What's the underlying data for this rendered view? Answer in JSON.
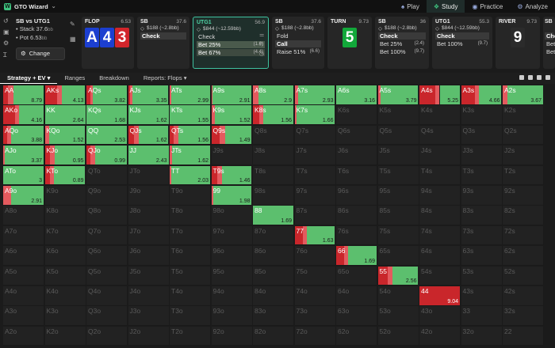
{
  "app": {
    "logo": "GTO Wizard"
  },
  "nav": [
    {
      "label": "Play",
      "icon": "spade-icon",
      "glyph": "♠"
    },
    {
      "label": "Study",
      "icon": "book-icon",
      "glyph": "❖"
    },
    {
      "label": "Practice",
      "icon": "controller-icon",
      "glyph": "◉"
    },
    {
      "label": "Analyze",
      "icon": "analyze-icon",
      "glyph": "⚙"
    }
  ],
  "spot": {
    "title": "SB vs UTG1",
    "stack_label": "Stack 37.6",
    "stack_unit": "bb",
    "pot_label": "Pot 6.53",
    "pot_unit": "bb",
    "change_label": "Change"
  },
  "flop": {
    "label": "FLOP",
    "pot": "6.53",
    "cards": [
      "A",
      "4",
      "3"
    ]
  },
  "sb1": {
    "label": "SB",
    "num": "37.6",
    "sub": "$188 (~2.8bb)",
    "actions": [
      {
        "label": "Check",
        "val": ""
      }
    ]
  },
  "utg1": {
    "label": "UTG1",
    "num": "56.9",
    "sub": "$844 (~12.59bb)",
    "actions": [
      {
        "label": "Check",
        "val": ""
      },
      {
        "label": "Bet 25%",
        "val": "(1.6)"
      },
      {
        "label": "Bet 67%",
        "val": "(4.4)"
      }
    ]
  },
  "sb2": {
    "label": "SB",
    "num": "37.6",
    "sub": "$188 (~2.8bb)",
    "actions": [
      {
        "label": "Fold",
        "val": ""
      },
      {
        "label": "Call",
        "val": ""
      },
      {
        "label": "Raise 51%",
        "val": "(6.6)"
      }
    ]
  },
  "turn": {
    "label": "TURN",
    "pot": "9.73",
    "card": "5"
  },
  "sb3": {
    "label": "SB",
    "num": "36",
    "sub": "$188 (~2.8bb)",
    "actions": [
      {
        "label": "Check",
        "val": ""
      },
      {
        "label": "Bet 25%",
        "val": "(2.4)"
      },
      {
        "label": "Bet 100%",
        "val": "(9.7)"
      }
    ]
  },
  "utg1b": {
    "label": "UTG1",
    "num": "55.3",
    "sub": "$844 (~12.59bb)",
    "actions": [
      {
        "label": "Check",
        "val": ""
      },
      {
        "label": "Bet 100%",
        "val": "(9.7)"
      }
    ]
  },
  "river": {
    "label": "RIVER",
    "pot": "9.73",
    "card": "9"
  },
  "last": {
    "label": "SB",
    "actions": [
      {
        "label": "Che"
      },
      {
        "label": "Bet"
      },
      {
        "label": "Bet"
      }
    ]
  },
  "tabs": [
    "Strategy + EV",
    "Ranges",
    "Breakdown",
    "Reports: Flops"
  ],
  "colors": {
    "green": "#5cbf6e",
    "dark_red": "#c9262b",
    "light_red": "#e35a5e",
    "accent": "#3ec2a0"
  },
  "matrix": [
    [
      [
        "AA",
        "8.79",
        [
          0.12,
          0.14,
          0.74
        ]
      ],
      [
        "AKs",
        "4.13",
        [
          0.3,
          0.12,
          0.58
        ]
      ],
      [
        "AQs",
        "3.82",
        [
          0.1,
          0.05,
          0.85
        ]
      ],
      [
        "AJs",
        "3.35",
        [
          0.05,
          0.05,
          0.9
        ]
      ],
      [
        "ATs",
        "2.99",
        [
          0.0,
          0.04,
          0.96
        ]
      ],
      [
        "A9s",
        "2.91",
        [
          0.0,
          0.02,
          0.98
        ]
      ],
      [
        "A8s",
        "2.9",
        [
          0.0,
          0.14,
          0.86
        ]
      ],
      [
        "A7s",
        "2.93",
        [
          0.0,
          0.08,
          0.92
        ]
      ],
      [
        "A6s",
        "3.16",
        [
          0,
          0,
          1
        ]
      ],
      [
        "A5s",
        "3.79",
        [
          0.0,
          0.06,
          0.94
        ]
      ],
      [
        "A4s",
        "5.25",
        [
          0.4,
          0.1,
          0.5
        ]
      ],
      [
        "A3s",
        "4.66",
        [
          0.35,
          0.1,
          0.55
        ]
      ],
      [
        "A2s",
        "3.67",
        [
          0.0,
          0.12,
          0.88
        ]
      ]
    ],
    [
      [
        "AKo",
        "4.16",
        [
          0.3,
          0.1,
          0.6
        ]
      ],
      [
        "KK",
        "2.64",
        [
          0,
          0,
          1
        ]
      ],
      [
        "KQs",
        "1.68",
        [
          0,
          0,
          1
        ]
      ],
      [
        "KJs",
        "1.62",
        [
          0,
          0,
          1
        ]
      ],
      [
        "KTs",
        "1.55",
        [
          0,
          0,
          1
        ]
      ],
      [
        "K9s",
        "1.52",
        [
          0,
          0.08,
          0.92
        ]
      ],
      [
        "K8s",
        "1.56",
        [
          0.15,
          0.1,
          0.75
        ]
      ],
      [
        "K7s",
        "1.66",
        [
          0,
          0.04,
          0.96
        ]
      ],
      [
        "K6s",
        ""
      ],
      [
        "K5s",
        ""
      ],
      [
        "K4s",
        ""
      ],
      [
        "K3s",
        ""
      ],
      [
        "K2s",
        ""
      ]
    ],
    [
      [
        "AQo",
        "3.88",
        [
          0.1,
          0.1,
          0.8
        ]
      ],
      [
        "KQo",
        "1.52",
        [
          0,
          0.1,
          0.9
        ]
      ],
      [
        "QQ",
        "2.53",
        [
          0,
          0,
          1
        ]
      ],
      [
        "QJs",
        "1.62",
        [
          0.15,
          0.12,
          0.73
        ]
      ],
      [
        "QTs",
        "1.56",
        [
          0.1,
          0.12,
          0.78
        ]
      ],
      [
        "Q9s",
        "1.49",
        [
          0.2,
          0.15,
          0.65
        ]
      ],
      [
        "Q8s",
        ""
      ],
      [
        "Q7s",
        ""
      ],
      [
        "Q6s",
        ""
      ],
      [
        "Q5s",
        ""
      ],
      [
        "Q4s",
        ""
      ],
      [
        "Q3s",
        ""
      ],
      [
        "Q2s",
        ""
      ]
    ],
    [
      [
        "AJo",
        "3.37",
        [
          0,
          0.04,
          0.96
        ]
      ],
      [
        "KJo",
        "0.95",
        [
          0.12,
          0.12,
          0.76
        ]
      ],
      [
        "QJo",
        "0.99",
        [
          0.1,
          0.12,
          0.78
        ]
      ],
      [
        "JJ",
        "2.43",
        [
          0,
          0,
          1
        ]
      ],
      [
        "JTs",
        "1.62",
        [
          0,
          0.05,
          0.95
        ]
      ],
      [
        "J9s",
        ""
      ],
      [
        "J8s",
        ""
      ],
      [
        "J7s",
        ""
      ],
      [
        "J6s",
        ""
      ],
      [
        "J5s",
        ""
      ],
      [
        "J4s",
        ""
      ],
      [
        "J3s",
        ""
      ],
      [
        "J2s",
        ""
      ]
    ],
    [
      [
        "ATo",
        "3",
        [
          0,
          0,
          1
        ]
      ],
      [
        "KTo",
        "0.89",
        [
          0.12,
          0.1,
          0.78
        ]
      ],
      [
        "QTo",
        ""
      ],
      [
        "JTo",
        ""
      ],
      [
        "TT",
        "2.03",
        [
          0,
          0.04,
          0.96
        ]
      ],
      [
        "T9s",
        "1.46",
        [
          0.15,
          0.12,
          0.73
        ]
      ],
      [
        "T8s",
        ""
      ],
      [
        "T7s",
        ""
      ],
      [
        "T6s",
        ""
      ],
      [
        "T5s",
        ""
      ],
      [
        "T4s",
        ""
      ],
      [
        "T3s",
        ""
      ],
      [
        "T2s",
        ""
      ]
    ],
    [
      [
        "A9o",
        "2.91",
        [
          0,
          0.2,
          0.8
        ]
      ],
      [
        "K9o",
        ""
      ],
      [
        "Q9o",
        ""
      ],
      [
        "J9o",
        ""
      ],
      [
        "T9o",
        ""
      ],
      [
        "99",
        "1.98",
        [
          0,
          0.05,
          0.95
        ]
      ],
      [
        "98s",
        ""
      ],
      [
        "97s",
        ""
      ],
      [
        "96s",
        ""
      ],
      [
        "95s",
        ""
      ],
      [
        "94s",
        ""
      ],
      [
        "93s",
        ""
      ],
      [
        "92s",
        ""
      ]
    ],
    [
      [
        "A8o",
        ""
      ],
      [
        "K8o",
        ""
      ],
      [
        "Q8o",
        ""
      ],
      [
        "J8o",
        ""
      ],
      [
        "T8o",
        ""
      ],
      [
        "98o",
        ""
      ],
      [
        "88",
        "1.69",
        [
          0,
          0,
          1
        ]
      ],
      [
        "87s",
        ""
      ],
      [
        "86s",
        ""
      ],
      [
        "85s",
        ""
      ],
      [
        "84s",
        ""
      ],
      [
        "83s",
        ""
      ],
      [
        "82s",
        ""
      ]
    ],
    [
      [
        "A7o",
        ""
      ],
      [
        "K7o",
        ""
      ],
      [
        "Q7o",
        ""
      ],
      [
        "J7o",
        ""
      ],
      [
        "T7o",
        ""
      ],
      [
        "97o",
        ""
      ],
      [
        "87o",
        ""
      ],
      [
        "77",
        "1.63",
        [
          0.2,
          0.1,
          0.7
        ]
      ],
      [
        "76s",
        ""
      ],
      [
        "75s",
        ""
      ],
      [
        "74s",
        ""
      ],
      [
        "73s",
        ""
      ],
      [
        "72s",
        ""
      ]
    ],
    [
      [
        "A6o",
        ""
      ],
      [
        "K6o",
        ""
      ],
      [
        "Q6o",
        ""
      ],
      [
        "J6o",
        ""
      ],
      [
        "T6o",
        ""
      ],
      [
        "96o",
        ""
      ],
      [
        "86o",
        ""
      ],
      [
        "76o",
        ""
      ],
      [
        "66",
        "1.69",
        [
          0.2,
          0.1,
          0.7
        ]
      ],
      [
        "65s",
        ""
      ],
      [
        "64s",
        ""
      ],
      [
        "63s",
        ""
      ],
      [
        "62s",
        ""
      ]
    ],
    [
      [
        "A5o",
        ""
      ],
      [
        "K5o",
        ""
      ],
      [
        "Q5o",
        ""
      ],
      [
        "J5o",
        ""
      ],
      [
        "T5o",
        ""
      ],
      [
        "95o",
        ""
      ],
      [
        "85o",
        ""
      ],
      [
        "75o",
        ""
      ],
      [
        "65o",
        ""
      ],
      [
        "55",
        "2.56",
        [
          0.25,
          0.12,
          0.63
        ]
      ],
      [
        "54s",
        ""
      ],
      [
        "53s",
        ""
      ],
      [
        "52s",
        ""
      ]
    ],
    [
      [
        "A4o",
        ""
      ],
      [
        "K4o",
        ""
      ],
      [
        "Q4o",
        ""
      ],
      [
        "J4o",
        ""
      ],
      [
        "T4o",
        ""
      ],
      [
        "94o",
        ""
      ],
      [
        "84o",
        ""
      ],
      [
        "74o",
        ""
      ],
      [
        "64o",
        ""
      ],
      [
        "54o",
        ""
      ],
      [
        "44",
        "9.04",
        [
          1,
          0,
          0
        ]
      ],
      [
        "43s",
        ""
      ],
      [
        "42s",
        ""
      ]
    ],
    [
      [
        "A3o",
        ""
      ],
      [
        "K3o",
        ""
      ],
      [
        "Q3o",
        ""
      ],
      [
        "J3o",
        ""
      ],
      [
        "T3o",
        ""
      ],
      [
        "93o",
        ""
      ],
      [
        "83o",
        ""
      ],
      [
        "73o",
        ""
      ],
      [
        "63o",
        ""
      ],
      [
        "53o",
        ""
      ],
      [
        "43o",
        ""
      ],
      [
        "33",
        ""
      ],
      [
        "32s",
        ""
      ]
    ],
    [
      [
        "A2o",
        ""
      ],
      [
        "K2o",
        ""
      ],
      [
        "Q2o",
        ""
      ],
      [
        "J2o",
        ""
      ],
      [
        "T2o",
        ""
      ],
      [
        "92o",
        ""
      ],
      [
        "82o",
        ""
      ],
      [
        "72o",
        ""
      ],
      [
        "62o",
        ""
      ],
      [
        "52o",
        ""
      ],
      [
        "42o",
        ""
      ],
      [
        "32o",
        ""
      ],
      [
        "22",
        ""
      ]
    ]
  ]
}
